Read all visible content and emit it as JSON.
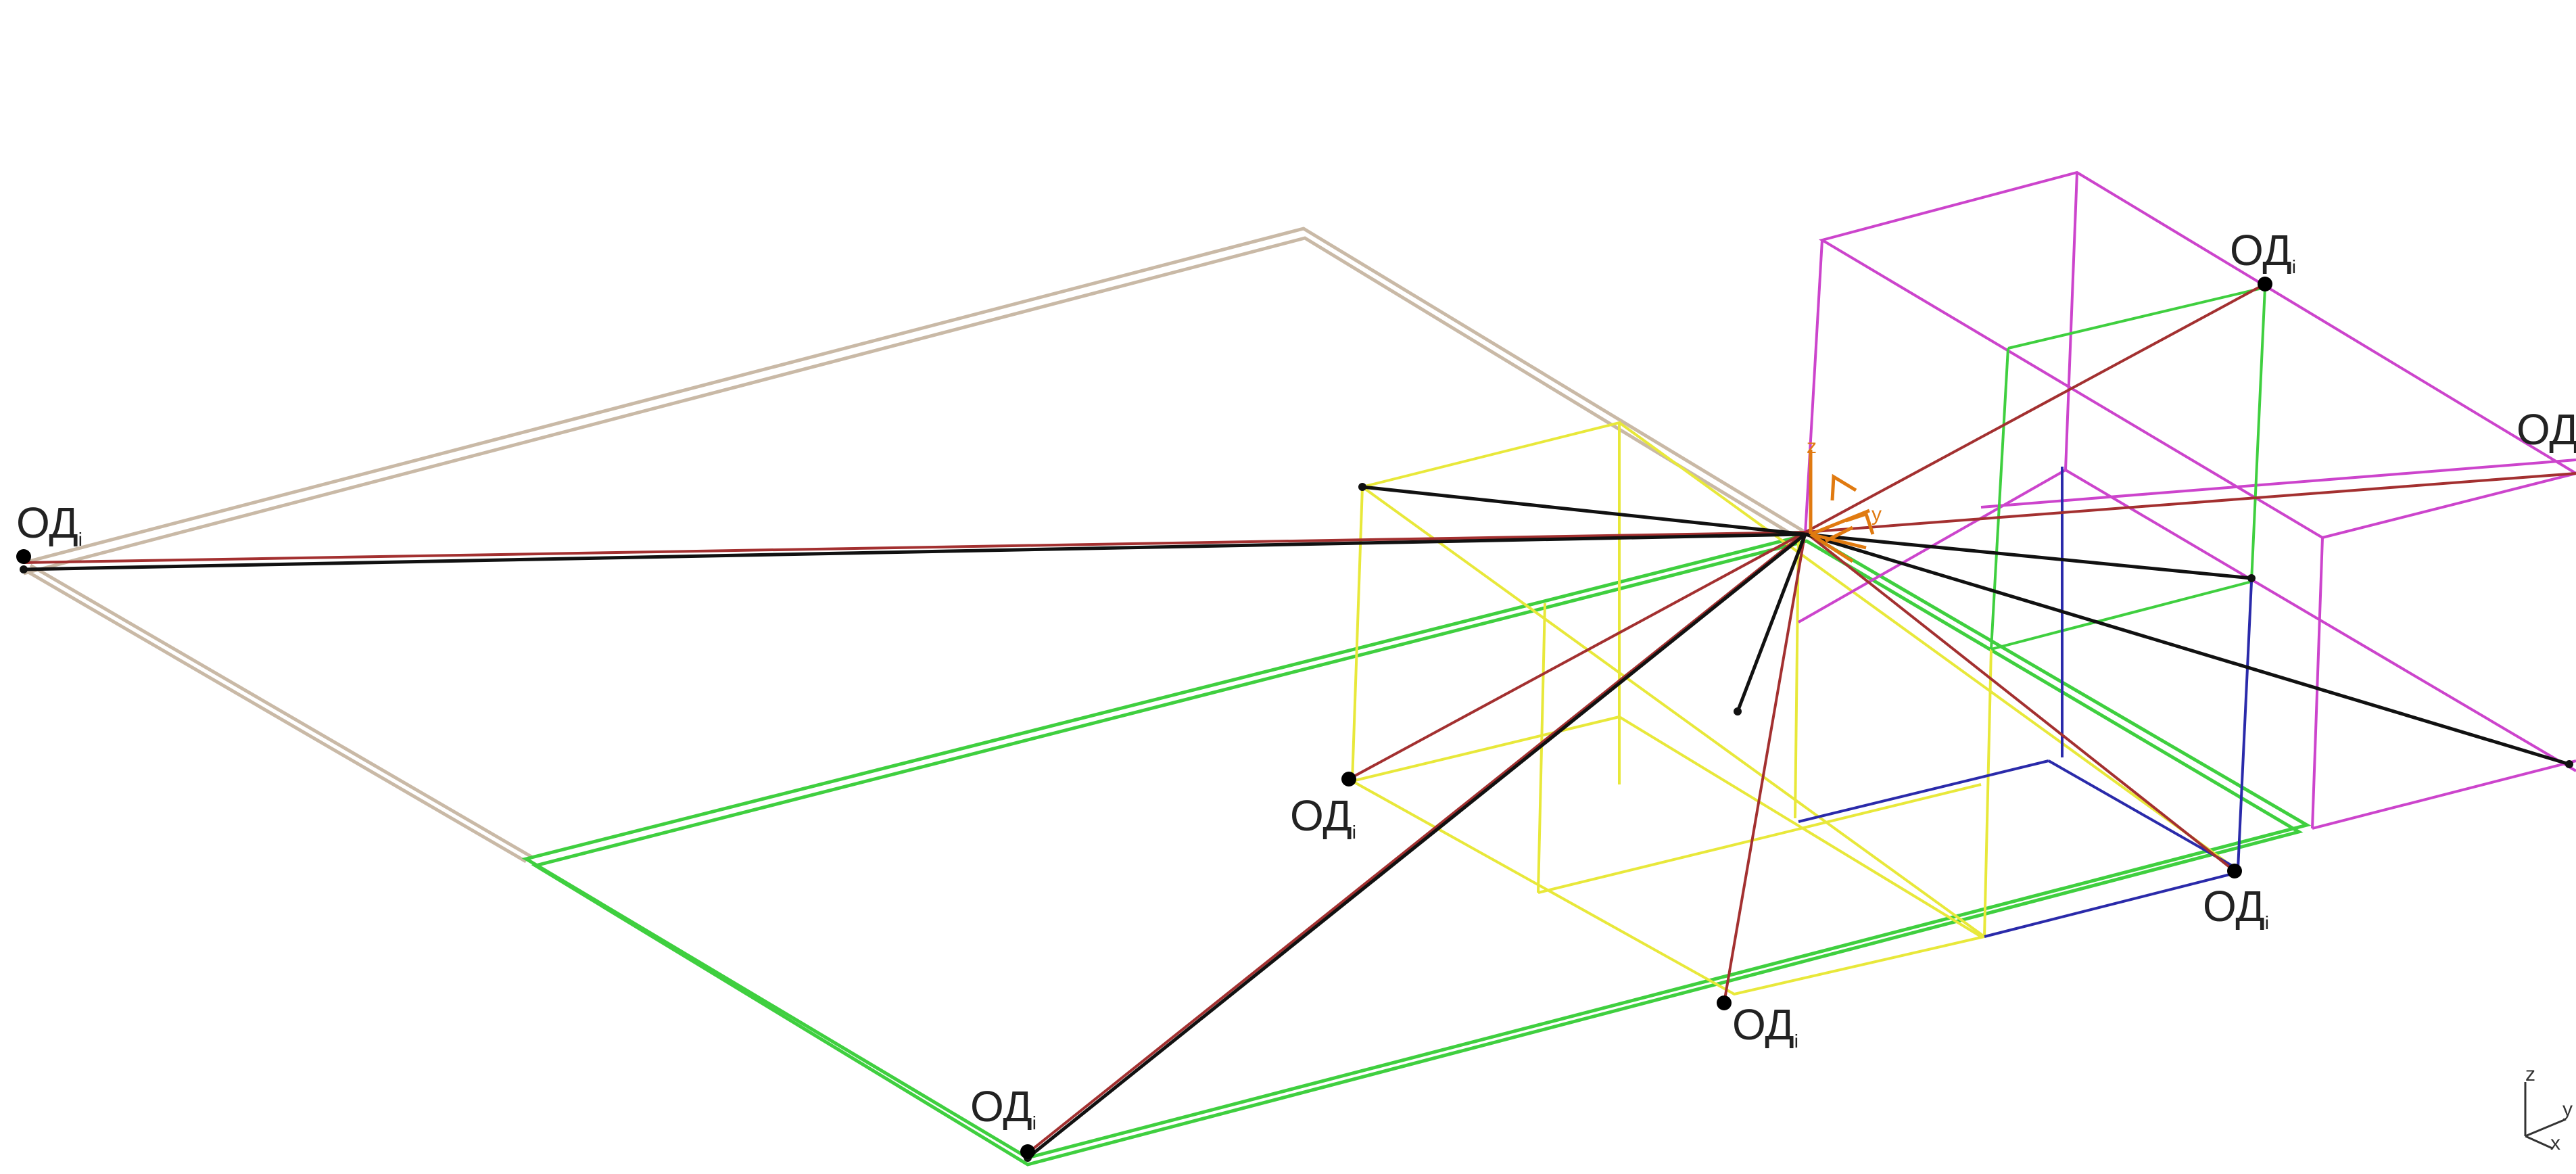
{
  "point_label": {
    "base": "ОД",
    "subscript": "i"
  },
  "colors": {
    "background": "#ffffff",
    "beige_frame": "#c9b9a6",
    "green_frame": "#3fcf3f",
    "yellow_box": "#e8e83a",
    "magenta_box": "#cc44cc",
    "blue_box": "#2a2aaa",
    "red_ray": "#a33030",
    "black_ray": "#111111",
    "source_axes": "#e07a10",
    "corner_triad": "#333333"
  },
  "source_axes": {
    "z": "z",
    "y": "y",
    "x": "x"
  },
  "corner_triad": {
    "z": "z",
    "y": "y",
    "x": "x"
  }
}
